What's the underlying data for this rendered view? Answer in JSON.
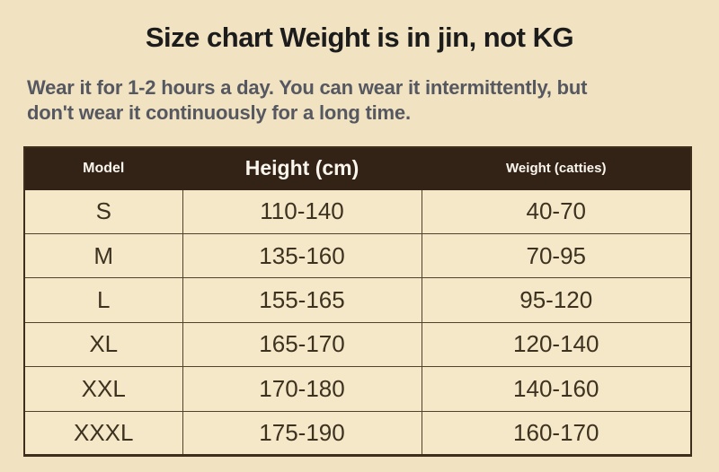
{
  "title": "Size chart Weight is in jin, not KG",
  "subtitle": {
    "full": "Wear it for 1-2 hours a day. You can wear it intermittently, but don't wear it continuously for a long time.",
    "line1": "Wear it for 1-2 hours a day. You can wear it intermittently, but",
    "line2": "don't wear it continuously for a long time."
  },
  "chart_data": {
    "type": "table",
    "title": "Size chart Weight is in jin, not KG",
    "columns": [
      "Model",
      "Height (cm)",
      "Weight (catties)"
    ],
    "rows": [
      [
        "S",
        "110-140",
        "40-70"
      ],
      [
        "M",
        "135-160",
        "70-95"
      ],
      [
        "L",
        "155-165",
        "95-120"
      ],
      [
        "XL",
        "165-170",
        "120-140"
      ],
      [
        "XXL",
        "170-180",
        "140-160"
      ],
      [
        "XXXL",
        "175-190",
        "160-170"
      ]
    ]
  },
  "colors": {
    "page_background": "#f1e2c1",
    "cell_background": "#f5e8c8",
    "header_background": "#332317",
    "header_text": "#faf6ee",
    "body_text": "#3d3220",
    "title_text": "#1c1c1c",
    "subtitle_text": "#565861",
    "border": "#52412b"
  }
}
